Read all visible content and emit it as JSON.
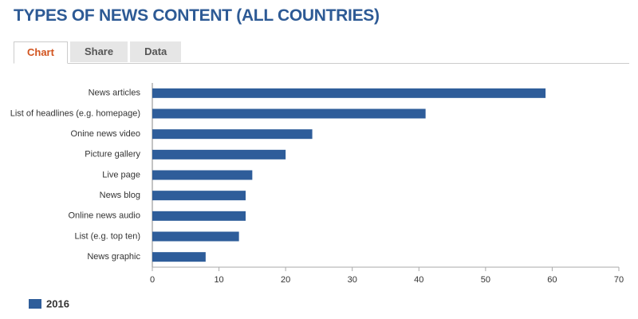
{
  "tabs": [
    "Chart",
    "Share",
    "Data"
  ],
  "chart_data": {
    "type": "bar",
    "title": "TYPES OF NEWS CONTENT (ALL COUNTRIES)",
    "categories": [
      "News articles",
      "List of headlines (e.g. homepage)",
      "Onine news video",
      "Picture gallery",
      "Live page",
      "News blog",
      "Online news audio",
      "List (e.g. top ten)",
      "News graphic"
    ],
    "series": [
      {
        "name": "2016",
        "color": "#2e5d9a",
        "values": [
          59,
          41,
          24,
          20,
          15,
          14,
          14,
          13,
          8
        ]
      }
    ],
    "xlim": [
      0,
      70
    ],
    "xticks": [
      0,
      10,
      20,
      30,
      40,
      50,
      60,
      70
    ],
    "grid": false
  }
}
